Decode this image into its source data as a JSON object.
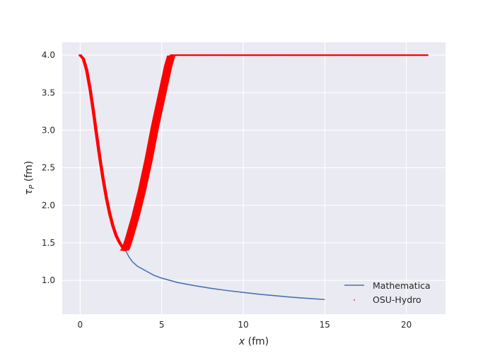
{
  "chart_data": {
    "type": "line",
    "title": "",
    "xlabel_var": "x",
    "xlabel_unit": " (fm)",
    "ylabel_var": "τ",
    "ylabel_sub": "P",
    "ylabel_unit": " (fm)",
    "xlim": [
      -1.1,
      22.4
    ],
    "ylim": [
      0.55,
      4.17
    ],
    "xticks": [
      0,
      5,
      10,
      15,
      20
    ],
    "yticks": [
      1.0,
      1.5,
      2.0,
      2.5,
      3.0,
      3.5,
      4.0
    ],
    "xtick_labels": [
      "0",
      "5",
      "10",
      "15",
      "20"
    ],
    "ytick_labels": [
      "1.0",
      "1.5",
      "2.0",
      "2.5",
      "3.0",
      "3.5",
      "4.0"
    ],
    "grid": true,
    "legend_position": "lower right",
    "series": [
      {
        "name": "Mathematica",
        "style": "line",
        "color": "#4c72b0",
        "x": [
          0,
          0.1,
          0.2,
          0.3,
          0.4,
          0.5,
          0.6,
          0.7,
          0.8,
          0.9,
          1.0,
          1.1,
          1.2,
          1.3,
          1.4,
          1.5,
          1.6,
          1.7,
          1.8,
          1.9,
          2.0,
          2.1,
          2.2,
          2.3,
          2.4,
          2.5,
          2.6,
          2.7,
          2.8,
          3.0,
          3.2,
          3.5,
          4.0,
          4.5,
          5.0,
          6.0,
          7.0,
          8.0,
          9.0,
          10.0,
          11.0,
          12.0,
          13.0,
          14.0,
          15.0
        ],
        "y": [
          4.0,
          3.99,
          3.95,
          3.89,
          3.8,
          3.69,
          3.56,
          3.42,
          3.27,
          3.11,
          2.95,
          2.79,
          2.64,
          2.5,
          2.36,
          2.23,
          2.11,
          2.0,
          1.9,
          1.81,
          1.73,
          1.66,
          1.6,
          1.55,
          1.51,
          1.47,
          1.44,
          1.41,
          1.39,
          1.31,
          1.25,
          1.19,
          1.13,
          1.07,
          1.03,
          0.97,
          0.93,
          0.895,
          0.865,
          0.84,
          0.815,
          0.795,
          0.775,
          0.76,
          0.745
        ]
      },
      {
        "name": "OSU-Hydro",
        "style": "scatter",
        "color": "#ff0000",
        "x": [
          0,
          0.2,
          0.4,
          0.6,
          0.8,
          1.0,
          1.2,
          1.4,
          1.6,
          1.8,
          2.0,
          2.2,
          2.4,
          2.6,
          2.7,
          2.8,
          3.0,
          3.4,
          3.8,
          4.2,
          4.6,
          5.0,
          5.4,
          5.6,
          5.8,
          6.0,
          8.0,
          10.0,
          12.0,
          14.0,
          16.0,
          18.0,
          20.0,
          21.3
        ],
        "y": [
          4.0,
          3.95,
          3.8,
          3.56,
          3.27,
          2.95,
          2.64,
          2.36,
          2.11,
          1.9,
          1.73,
          1.6,
          1.51,
          1.44,
          1.4,
          1.42,
          1.55,
          1.85,
          2.2,
          2.6,
          3.05,
          3.45,
          3.85,
          4.0,
          4.0,
          4.0,
          4.0,
          4.0,
          4.0,
          4.0,
          4.0,
          4.0,
          4.0,
          4.0
        ]
      }
    ]
  }
}
